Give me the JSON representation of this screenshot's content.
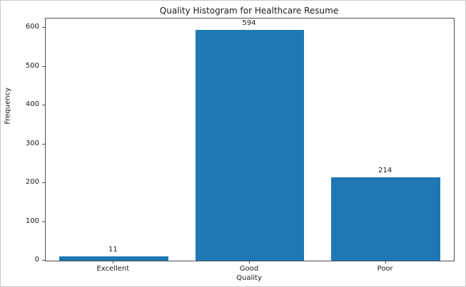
{
  "chart_data": {
    "type": "bar",
    "title": "Quality Histogram for Healthcare Resume",
    "categories": [
      "Excellent",
      "Good",
      "Poor"
    ],
    "values": [
      11,
      594,
      214
    ],
    "xlabel": "Quality",
    "ylabel": "Frequency",
    "ylim": [
      0,
      624
    ],
    "yticks": [
      0,
      100,
      200,
      300,
      400,
      500,
      600
    ],
    "bar_color": "#1f77b4",
    "value_labels_shown": true,
    "grid": false,
    "legend": "none"
  }
}
